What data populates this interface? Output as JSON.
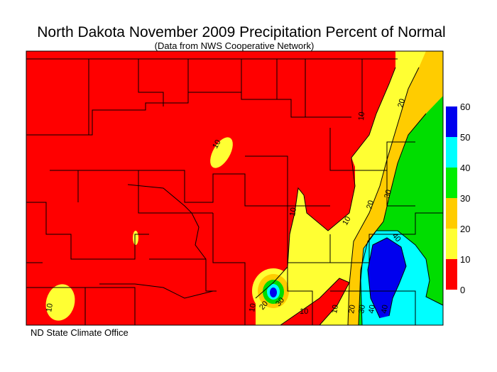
{
  "title": "North Dakota November 2009 Precipitation Percent of Normal",
  "subtitle": "(Data from NWS Cooperative Network)",
  "credit": "ND State Climate Office",
  "legend": {
    "labels": [
      "60",
      "50",
      "40",
      "30",
      "20",
      "10",
      "0"
    ],
    "colors": [
      "#0000ee",
      "#00ffff",
      "#00ee00",
      "#ffcc00",
      "#ffff33",
      "#ff0000"
    ]
  },
  "contour_labels": [
    "10",
    "10",
    "10",
    "10",
    "10",
    "20",
    "20",
    "30",
    "40",
    "10",
    "20",
    "30",
    "40",
    "10",
    "10",
    "20",
    "30",
    "40"
  ]
}
